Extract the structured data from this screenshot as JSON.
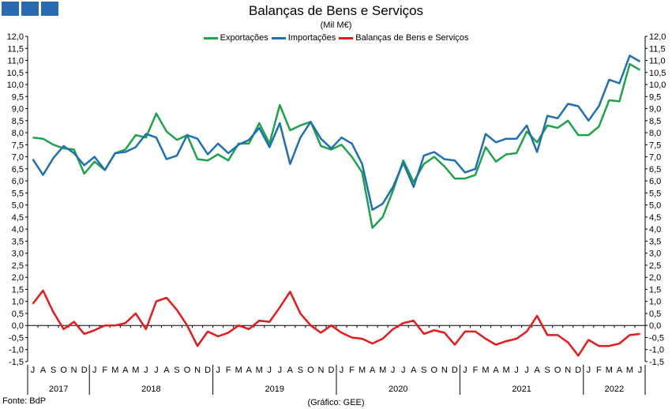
{
  "header": {
    "title": "Balanças de Bens e Serviços",
    "subtitle": "(Mil M€)"
  },
  "logo": {
    "color": "#2a6ab2"
  },
  "footer": {
    "source": "Fonte: BdP",
    "credit": "(Gráfico: GEE)"
  },
  "chart_data": {
    "type": "line",
    "ylim": [
      -1.5,
      12.0
    ],
    "ytick_step": 0.5,
    "ytick_labels": [
      "-1,5",
      "-1,0",
      "-0,5",
      "0,0",
      "0,5",
      "1,0",
      "1,5",
      "2,0",
      "2,5",
      "3,0",
      "3,5",
      "4,0",
      "4,5",
      "5,0",
      "5,5",
      "6,0",
      "6,5",
      "7,0",
      "7,5",
      "8,0",
      "8,5",
      "9,0",
      "9,5",
      "10,0",
      "10,5",
      "11,0",
      "11,5",
      "12,0"
    ],
    "grid": false,
    "legend_position": "top-center",
    "months": [
      "J",
      "A",
      "S",
      "O",
      "N",
      "D",
      "J",
      "F",
      "M",
      "A",
      "M",
      "J",
      "J",
      "A",
      "S",
      "O",
      "N",
      "D",
      "J",
      "F",
      "M",
      "A",
      "M",
      "J",
      "J",
      "A",
      "S",
      "O",
      "N",
      "D",
      "J",
      "F",
      "M",
      "A",
      "M",
      "J",
      "J",
      "A",
      "S",
      "O",
      "N",
      "D",
      "J",
      "F",
      "M",
      "A",
      "M",
      "J",
      "J",
      "A",
      "S",
      "O",
      "N",
      "D",
      "J",
      "F",
      "M",
      "A",
      "M",
      "J"
    ],
    "years": [
      {
        "label": "2017",
        "start": 0,
        "count": 6
      },
      {
        "label": "2018",
        "start": 6,
        "count": 12
      },
      {
        "label": "2019",
        "start": 18,
        "count": 12
      },
      {
        "label": "2020",
        "start": 30,
        "count": 12
      },
      {
        "label": "2021",
        "start": 42,
        "count": 12
      },
      {
        "label": "2022",
        "start": 54,
        "count": 6
      }
    ],
    "series": [
      {
        "name": "Exportações",
        "color": "#1fa34a",
        "values": [
          7.8,
          7.75,
          7.5,
          7.35,
          7.3,
          6.3,
          6.8,
          6.45,
          7.15,
          7.3,
          7.9,
          7.8,
          8.8,
          8.05,
          7.7,
          7.9,
          6.9,
          6.85,
          7.1,
          6.85,
          7.55,
          7.55,
          8.4,
          7.55,
          9.15,
          8.1,
          8.3,
          8.45,
          7.45,
          7.3,
          7.5,
          7.0,
          6.35,
          4.05,
          4.5,
          5.6,
          6.85,
          5.95,
          6.7,
          7.0,
          6.6,
          6.1,
          6.1,
          6.25,
          7.4,
          6.8,
          7.1,
          7.15,
          8.05,
          7.6,
          8.3,
          8.2,
          8.5,
          7.9,
          7.9,
          8.25,
          9.35,
          9.3,
          10.85,
          10.6
        ]
      },
      {
        "name": "Importações",
        "color": "#1f6fb4",
        "values": [
          6.9,
          6.25,
          6.95,
          7.45,
          7.15,
          6.65,
          7.0,
          6.45,
          7.15,
          7.2,
          7.4,
          7.95,
          7.8,
          6.9,
          7.05,
          7.9,
          7.75,
          7.1,
          7.55,
          7.15,
          7.5,
          7.7,
          8.2,
          7.4,
          8.4,
          6.7,
          7.8,
          8.45,
          7.75,
          7.35,
          7.8,
          7.55,
          6.7,
          4.8,
          5.05,
          5.75,
          6.75,
          5.75,
          7.05,
          7.2,
          6.9,
          6.85,
          6.35,
          6.5,
          7.95,
          7.6,
          7.75,
          7.75,
          8.3,
          7.2,
          8.7,
          8.6,
          9.2,
          9.1,
          8.5,
          9.1,
          10.2,
          10.05,
          11.2,
          10.95
        ]
      },
      {
        "name": "Balanças de Bens e Serviços",
        "color": "#e41a1c",
        "values": [
          0.9,
          1.45,
          0.55,
          -0.15,
          0.15,
          -0.35,
          -0.2,
          0.0,
          0.0,
          0.1,
          0.5,
          -0.15,
          1.0,
          1.15,
          0.65,
          0.0,
          -0.85,
          -0.25,
          -0.45,
          -0.3,
          0.0,
          -0.15,
          0.2,
          0.15,
          0.75,
          1.4,
          0.5,
          0.0,
          -0.3,
          0.0,
          -0.3,
          -0.5,
          -0.55,
          -0.75,
          -0.55,
          -0.15,
          0.1,
          0.2,
          -0.35,
          -0.2,
          -0.3,
          -0.8,
          -0.25,
          -0.25,
          -0.55,
          -0.8,
          -0.65,
          -0.55,
          -0.25,
          0.4,
          -0.4,
          -0.4,
          -0.7,
          -1.25,
          -0.6,
          -0.85,
          -0.85,
          -0.75,
          -0.4,
          -0.35
        ]
      }
    ]
  }
}
